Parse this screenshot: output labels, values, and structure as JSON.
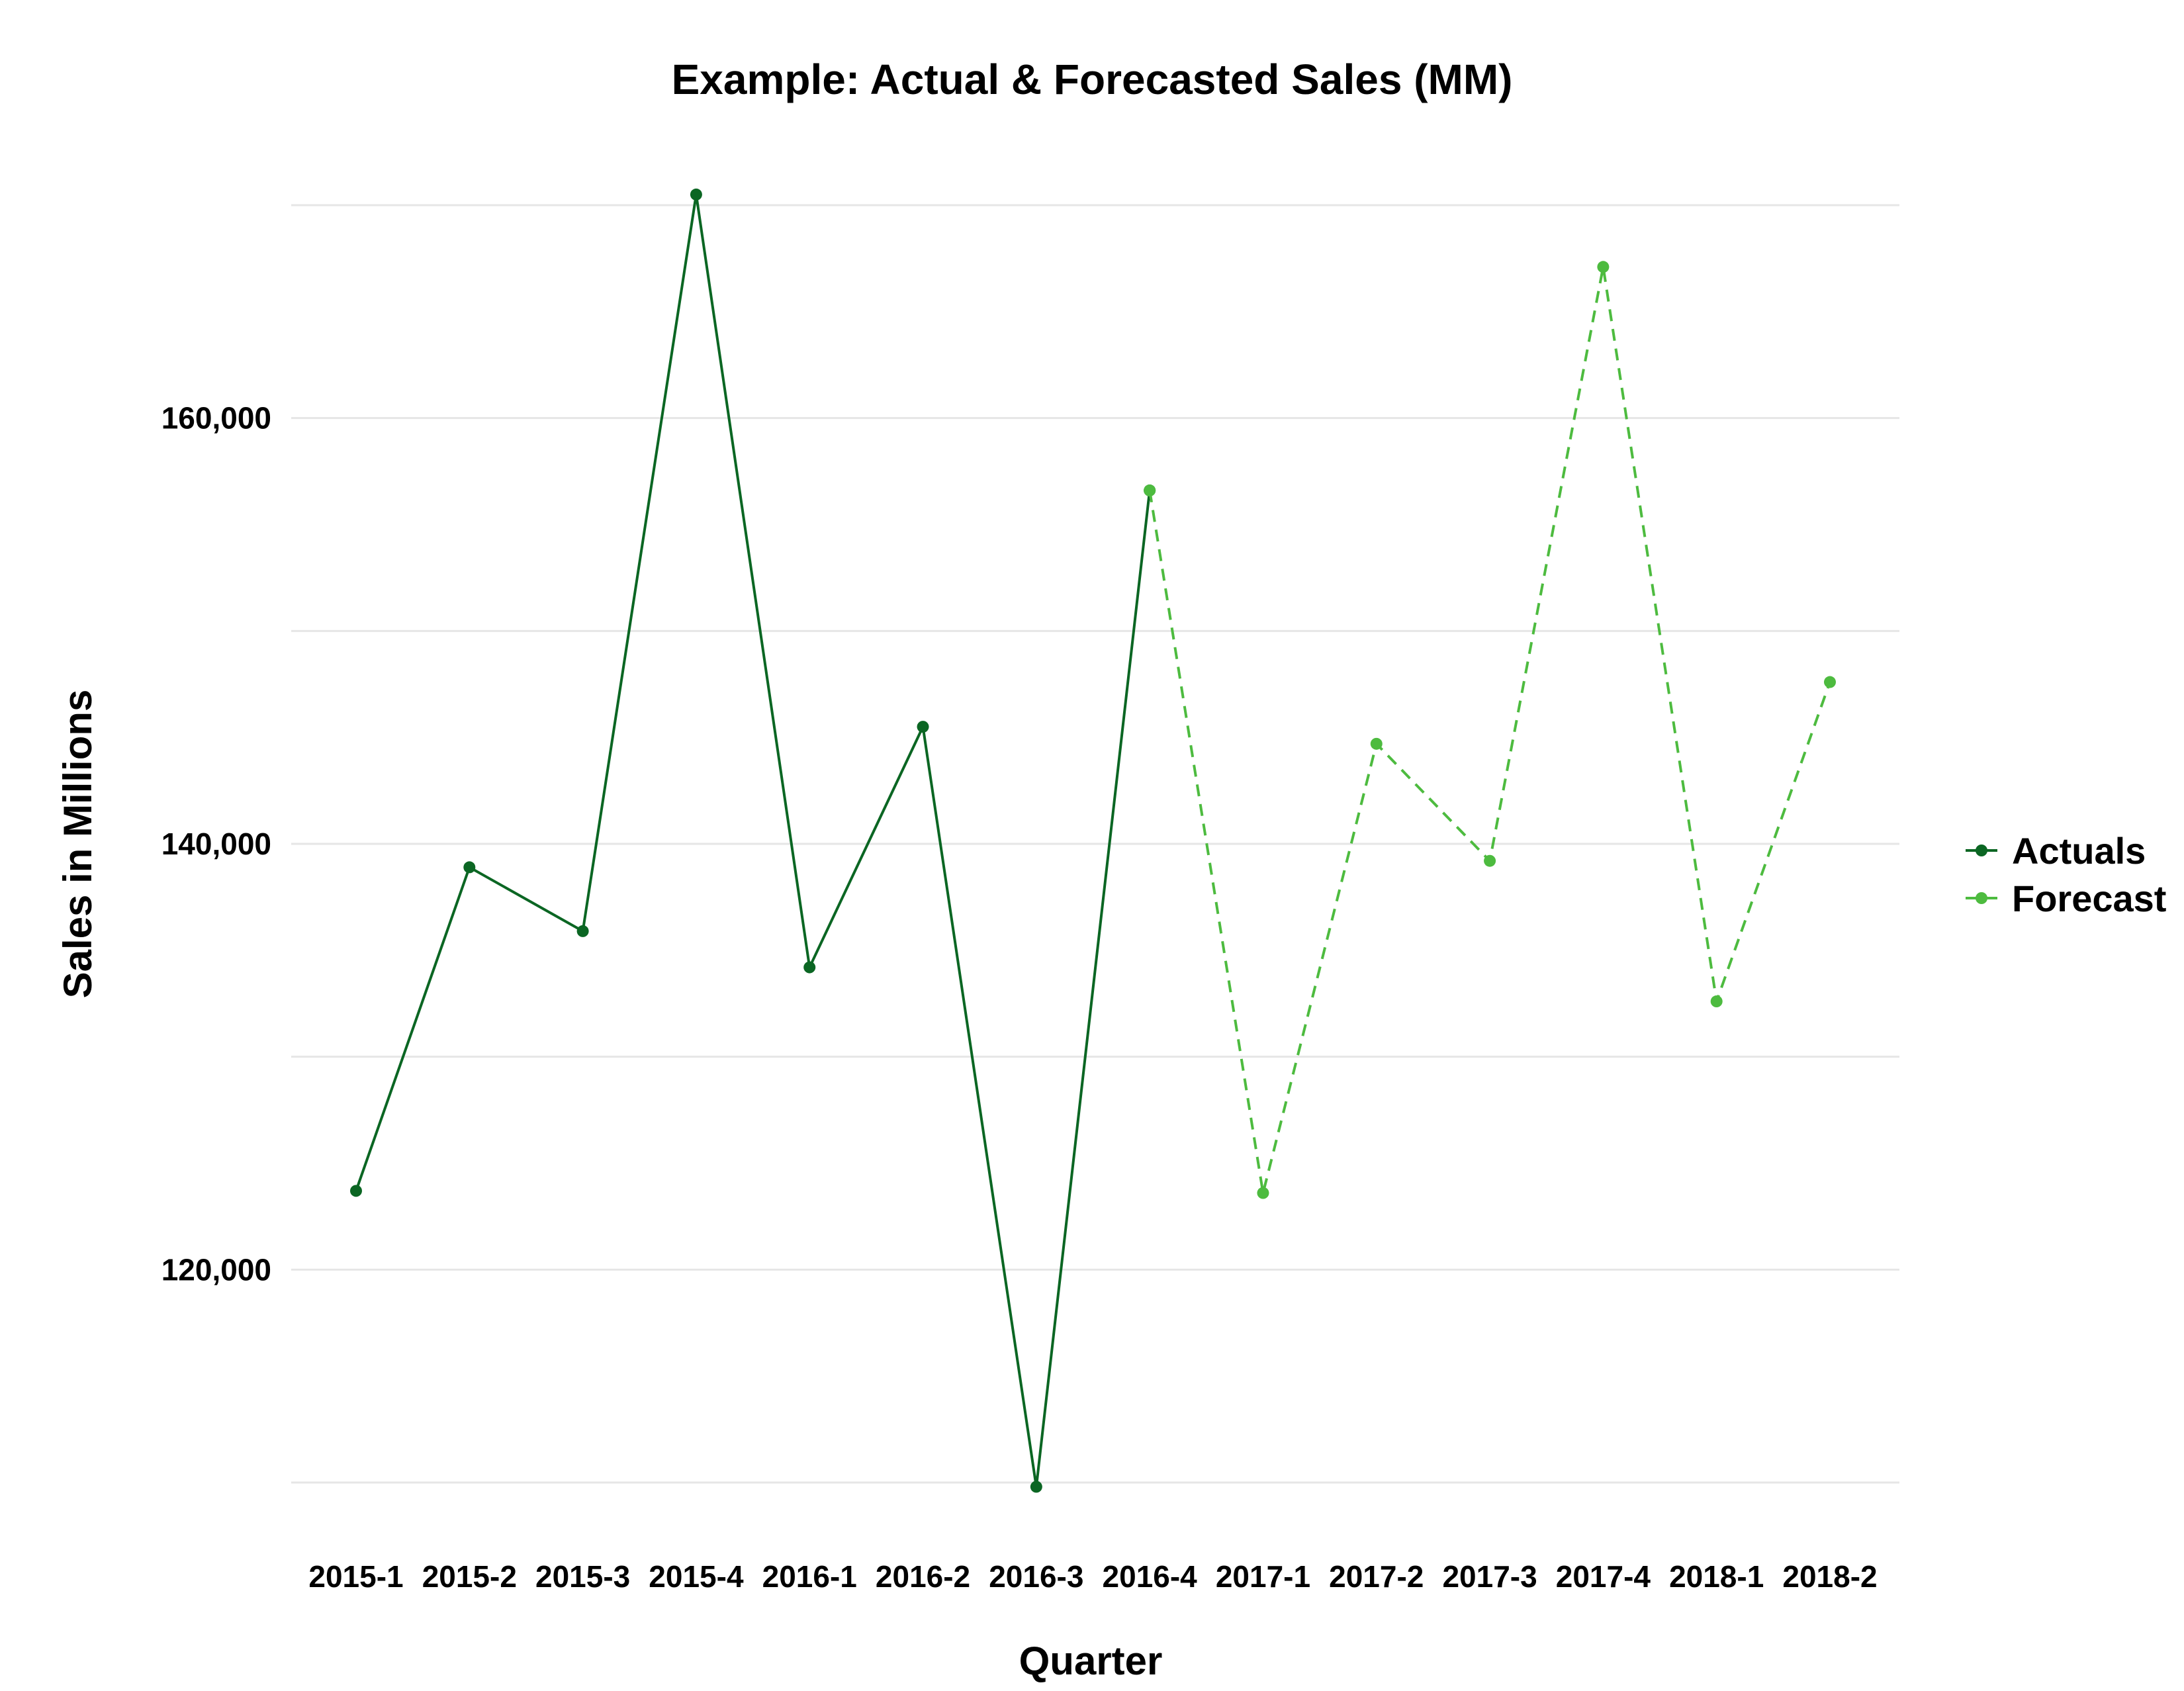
{
  "chart_data": {
    "type": "line",
    "title": "Example: Actual & Forecasted Sales (MM)",
    "xlabel": "Quarter",
    "ylabel": "Sales in Millions",
    "categories": [
      "2015-1",
      "2015-2",
      "2015-3",
      "2015-4",
      "2016-1",
      "2016-2",
      "2016-3",
      "2016-4",
      "2017-1",
      "2017-2",
      "2017-3",
      "2017-4",
      "2018-1",
      "2018-2"
    ],
    "ylim": [
      110000,
      170000
    ],
    "yticks": [
      120000,
      140000,
      160000
    ],
    "ytick_labels": [
      "120,000",
      "140,000",
      "160,000"
    ],
    "grid": true,
    "legend_position": "right",
    "series": [
      {
        "name": "Actuals",
        "color": "#0b6623",
        "line_style": "solid",
        "values": [
          123700,
          138900,
          135900,
          170500,
          134200,
          145500,
          109800,
          156600,
          null,
          null,
          null,
          null,
          null,
          null
        ]
      },
      {
        "name": "Forecast",
        "color": "#4dbb3f",
        "line_style": "dashed",
        "values": [
          null,
          null,
          null,
          null,
          null,
          null,
          null,
          156600,
          123600,
          144700,
          139200,
          167100,
          132600,
          147600
        ]
      }
    ]
  }
}
